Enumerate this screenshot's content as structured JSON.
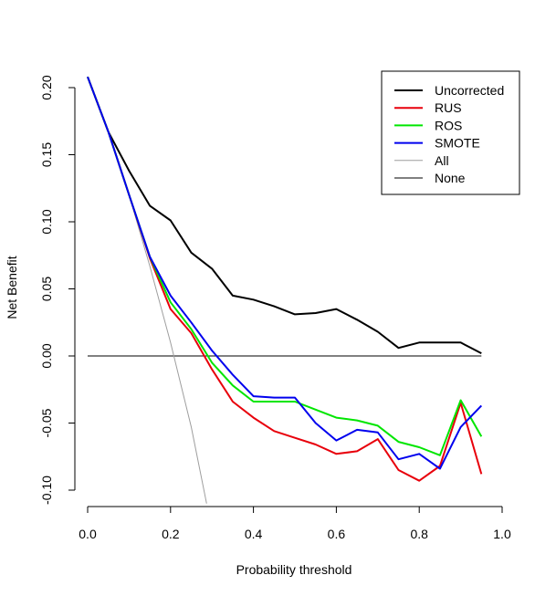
{
  "chart_data": {
    "type": "line",
    "title": "",
    "xlabel": "Probability threshold",
    "ylabel": "Net Benefit",
    "xlim": [
      0.0,
      1.0
    ],
    "ylim": [
      -0.1,
      0.21
    ],
    "x_ticks": [
      "0.0",
      "0.2",
      "0.4",
      "0.6",
      "0.8",
      "1.0"
    ],
    "y_ticks": [
      "-0.10",
      "-0.05",
      "0.00",
      "0.05",
      "0.10",
      "0.15",
      "0.20"
    ],
    "legend_position": "top-right",
    "x": [
      0.0,
      0.05,
      0.1,
      0.15,
      0.2,
      0.25,
      0.3,
      0.35,
      0.4,
      0.45,
      0.5,
      0.55,
      0.6,
      0.65,
      0.7,
      0.75,
      0.8,
      0.85,
      0.9,
      0.95
    ],
    "series": [
      {
        "name": "Uncorrected",
        "color": "#000000",
        "width": 2,
        "values": [
          0.208,
          0.167,
          0.138,
          0.112,
          0.101,
          0.077,
          0.065,
          0.045,
          0.042,
          0.037,
          0.031,
          0.032,
          0.035,
          0.027,
          0.018,
          0.006,
          0.01,
          0.01,
          0.01,
          0.002
        ]
      },
      {
        "name": "RUS",
        "color": "#e8000b",
        "width": 2,
        "values": [
          0.208,
          0.167,
          0.12,
          0.073,
          0.035,
          0.017,
          -0.01,
          -0.034,
          -0.046,
          -0.056,
          -0.061,
          -0.066,
          -0.073,
          -0.071,
          -0.062,
          -0.085,
          -0.093,
          -0.082,
          -0.035,
          -0.088
        ]
      },
      {
        "name": "ROS",
        "color": "#00e600",
        "width": 2,
        "values": [
          0.208,
          0.167,
          0.12,
          0.074,
          0.04,
          0.02,
          -0.005,
          -0.022,
          -0.034,
          -0.034,
          -0.034,
          -0.04,
          -0.046,
          -0.048,
          -0.052,
          -0.064,
          -0.068,
          -0.074,
          -0.033,
          -0.06
        ]
      },
      {
        "name": "SMOTE",
        "color": "#0000ee",
        "width": 2,
        "values": [
          0.208,
          0.167,
          0.12,
          0.074,
          0.045,
          0.025,
          0.004,
          -0.014,
          -0.03,
          -0.031,
          -0.031,
          -0.05,
          -0.063,
          -0.055,
          -0.057,
          -0.077,
          -0.073,
          -0.084,
          -0.053,
          -0.037
        ]
      },
      {
        "name": "All",
        "color": "#9e9e9e",
        "width": 1,
        "x": [
          0.0,
          0.05,
          0.1,
          0.15,
          0.2,
          0.25,
          0.287
        ],
        "values": [
          0.208,
          0.167,
          0.12,
          0.067,
          0.01,
          -0.053,
          -0.11
        ]
      },
      {
        "name": "None",
        "color": "#000000",
        "width": 1,
        "x": [
          0.0,
          0.95
        ],
        "values": [
          0.0,
          0.0
        ]
      }
    ]
  }
}
